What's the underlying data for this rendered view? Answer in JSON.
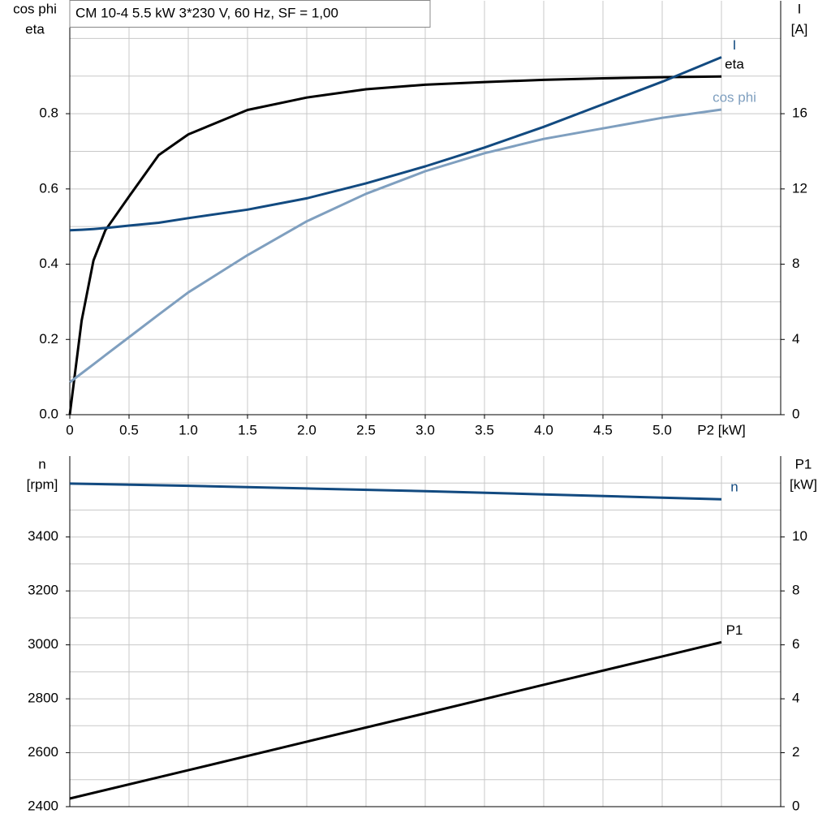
{
  "chart_data": [
    {
      "type": "line",
      "title": "CM 10-4   5.5 kW   3*230 V, 60 Hz, SF = 1,00",
      "ylabel": [
        "cos phi",
        "eta"
      ],
      "y2label": [
        "I",
        "[A]"
      ],
      "xlim": [
        0,
        6
      ],
      "xticks": [
        {
          "value": 0,
          "label": "0"
        },
        0.5,
        {
          "value": 1,
          "label": "1.0"
        },
        1.5,
        {
          "value": 2,
          "label": "2.0"
        },
        2.5,
        {
          "value": 3,
          "label": "3.0"
        },
        3.5,
        {
          "value": 4,
          "label": "4.0"
        },
        4.5,
        {
          "value": 5,
          "label": "5.0"
        },
        {
          "value": 5.5,
          "label": "P2 [kW]"
        }
      ],
      "ylim": [
        0,
        1.1
      ],
      "yticks": [
        {
          "value": 0,
          "label": "0.0"
        },
        0.2,
        0.4,
        0.6,
        0.8
      ],
      "ygrid": [
        0.1,
        0.3,
        0.5,
        0.7,
        0.9,
        1.0
      ],
      "y2lim": [
        0,
        22
      ],
      "y2ticks": [
        0,
        4,
        8,
        12,
        16
      ],
      "grid": true,
      "x": [
        0,
        0.1,
        0.2,
        0.3,
        0.5,
        0.75,
        1.0,
        1.5,
        2.0,
        2.5,
        3.0,
        3.5,
        4.0,
        4.5,
        5.0,
        5.5
      ],
      "series": [
        {
          "name": "eta",
          "color": "#000000",
          "values": [
            0,
            0.25,
            0.41,
            0.49,
            0.58,
            0.69,
            0.745,
            0.81,
            0.843,
            0.865,
            0.877,
            0.884,
            0.89,
            0.894,
            0.897,
            0.899
          ]
        },
        {
          "name": "I",
          "color": "#124a80",
          "axis": "y2",
          "values": [
            9.8,
            9.83,
            9.87,
            9.92,
            10.05,
            10.2,
            10.45,
            10.9,
            11.5,
            12.3,
            13.2,
            14.2,
            15.3,
            16.5,
            17.7,
            19.0
          ]
        },
        {
          "name": "cos phi",
          "color": "#7f9fbf",
          "values": [
            0.086,
            0.11,
            0.134,
            0.158,
            0.206,
            0.266,
            0.325,
            0.424,
            0.514,
            0.587,
            0.647,
            0.695,
            0.733,
            0.761,
            0.789,
            0.811
          ]
        }
      ]
    },
    {
      "type": "line",
      "ylabel": [
        "n",
        "[rpm]"
      ],
      "y2label": [
        "P1",
        "[kW]"
      ],
      "xlim": [
        0,
        6
      ],
      "xgrid": [
        0.5,
        1,
        1.5,
        2,
        2.5,
        3,
        3.5,
        4,
        4.5,
        5,
        5.5
      ],
      "ylim": [
        2400,
        3700
      ],
      "yticks": [
        2400,
        2600,
        2800,
        3000,
        3200,
        3400
      ],
      "ygrid": [
        2500,
        2700,
        2900,
        3100,
        3300,
        3500,
        3600
      ],
      "y2lim": [
        0,
        13
      ],
      "y2ticks": [
        0,
        2,
        4,
        6,
        8,
        10
      ],
      "grid": true,
      "x": [
        0,
        1,
        2,
        3,
        4,
        5,
        5.5
      ],
      "series": [
        {
          "name": "n",
          "color": "#124a80",
          "values": [
            3598,
            3590,
            3580,
            3570,
            3558,
            3546,
            3540
          ]
        },
        {
          "name": "P1",
          "color": "#000000",
          "axis": "y2",
          "values": [
            0.3,
            1.35,
            2.41,
            3.46,
            4.52,
            5.57,
            6.1
          ]
        }
      ]
    }
  ]
}
